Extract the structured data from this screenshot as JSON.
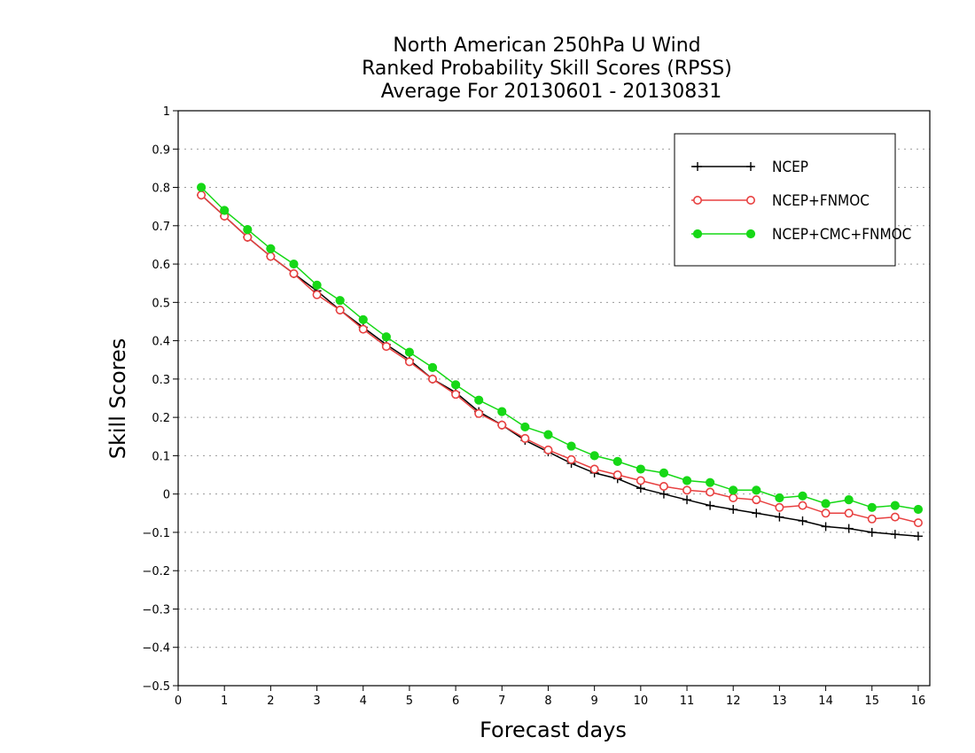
{
  "chart_data": {
    "type": "line",
    "title_lines": [
      "North American 250hPa U Wind",
      "Ranked Probability Skill Scores (RPSS)",
      "Average For 20130601 - 20130831"
    ],
    "xlabel": "Forecast days",
    "ylabel": "Skill Scores",
    "xlim": [
      0,
      16.25
    ],
    "ylim": [
      -0.5,
      1
    ],
    "x_ticks": [
      0,
      1,
      2,
      3,
      4,
      5,
      6,
      7,
      8,
      9,
      10,
      11,
      12,
      13,
      14,
      15,
      16
    ],
    "y_ticks": [
      1,
      0.9,
      0.8,
      0.7,
      0.6,
      0.5,
      0.4,
      0.3,
      0.2,
      0.1,
      0,
      -0.1,
      -0.2,
      -0.3,
      -0.4,
      -0.5
    ],
    "grid": true,
    "legend_position": "top-right",
    "x": [
      0.5,
      1,
      1.5,
      2,
      2.5,
      3,
      3.5,
      4,
      4.5,
      5,
      5.5,
      6,
      6.5,
      7,
      7.5,
      8,
      8.5,
      9,
      9.5,
      10,
      10.5,
      11,
      11.5,
      12,
      12.5,
      13,
      13.5,
      14,
      14.5,
      15,
      15.5,
      16
    ],
    "series": [
      {
        "name": "NCEP",
        "color": "#000000",
        "marker": "plus",
        "values": [
          0.78,
          0.725,
          0.67,
          0.62,
          0.575,
          0.53,
          0.48,
          0.435,
          0.39,
          0.35,
          0.3,
          0.265,
          0.215,
          0.18,
          0.14,
          0.11,
          0.08,
          0.055,
          0.04,
          0.015,
          0.0,
          -0.015,
          -0.03,
          -0.04,
          -0.05,
          -0.06,
          -0.07,
          -0.085,
          -0.09,
          -0.1,
          -0.105,
          -0.11
        ]
      },
      {
        "name": "NCEP+FNMOC",
        "color": "#e84040",
        "marker": "open-circle",
        "values": [
          0.78,
          0.725,
          0.67,
          0.62,
          0.575,
          0.52,
          0.48,
          0.43,
          0.385,
          0.345,
          0.3,
          0.26,
          0.21,
          0.18,
          0.145,
          0.115,
          0.09,
          0.065,
          0.05,
          0.035,
          0.02,
          0.01,
          0.005,
          -0.01,
          -0.015,
          -0.035,
          -0.03,
          -0.05,
          -0.05,
          -0.065,
          -0.06,
          -0.075
        ]
      },
      {
        "name": "NCEP+CMC+FNMOC",
        "color": "#16d816",
        "marker": "filled-circle",
        "values": [
          0.8,
          0.74,
          0.69,
          0.64,
          0.6,
          0.545,
          0.505,
          0.455,
          0.41,
          0.37,
          0.33,
          0.285,
          0.245,
          0.215,
          0.175,
          0.155,
          0.125,
          0.1,
          0.085,
          0.065,
          0.055,
          0.035,
          0.03,
          0.01,
          0.01,
          -0.01,
          -0.005,
          -0.025,
          -0.015,
          -0.035,
          -0.03,
          -0.04
        ]
      }
    ]
  }
}
